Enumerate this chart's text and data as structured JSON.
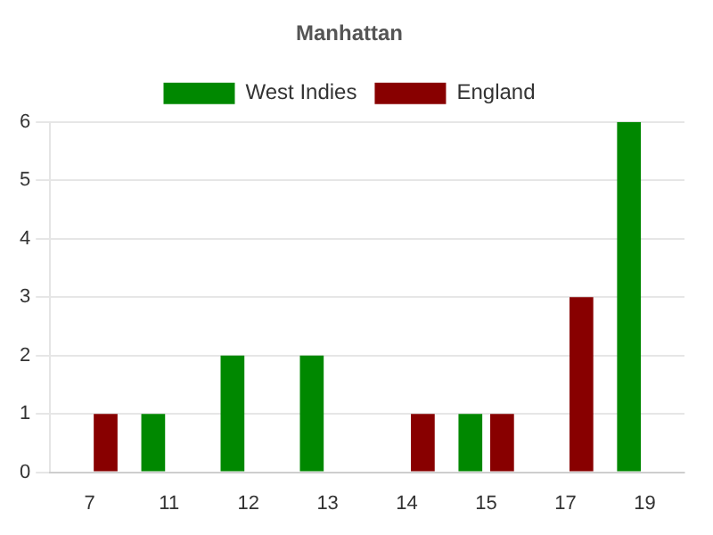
{
  "chart_data": {
    "type": "bar",
    "title": "Manhattan",
    "categories": [
      "7",
      "11",
      "12",
      "13",
      "14",
      "15",
      "17",
      "19"
    ],
    "series": [
      {
        "name": "West Indies",
        "color": "#008800",
        "values": [
          0,
          1,
          2,
          2,
          0,
          1,
          0,
          6
        ]
      },
      {
        "name": "England",
        "color": "#880000",
        "values": [
          1,
          0,
          0,
          0,
          1,
          1,
          3,
          0
        ]
      }
    ],
    "ylim": [
      0,
      6
    ],
    "yticks": [
      0,
      1,
      2,
      3,
      4,
      5,
      6
    ],
    "grid": "y",
    "legend": "top"
  }
}
